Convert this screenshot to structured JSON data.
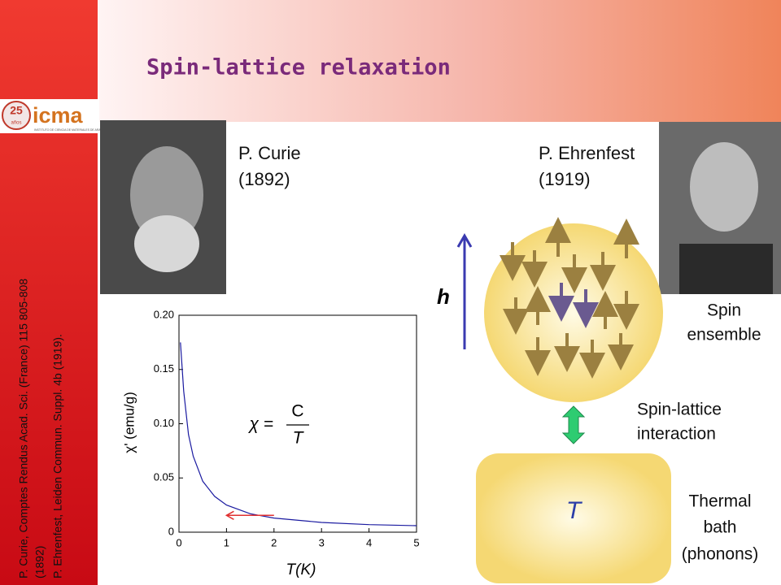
{
  "title": "Spin-lattice relaxation",
  "logo": {
    "years": "25",
    "years_word": "años",
    "name": "icma",
    "institute": "INSTITUTO DE CIENCIA DE MATERIALES DE ARAGÓN"
  },
  "references": [
    "P. Curie, Comptes Rendus Acad. Sci. (France) 115 805-808",
    "(1892)",
    "P. Ehrenfest, Leiden Commun. Suppl. 4b (1919)."
  ],
  "people": [
    {
      "name": "P. Curie",
      "year": "(1892)"
    },
    {
      "name": "P. Ehrenfest",
      "year": "(1919)"
    }
  ],
  "field_label": "h",
  "spin_label": [
    "Spin",
    "ensemble"
  ],
  "interaction_label": [
    "Spin-lattice",
    "interaction"
  ],
  "bath_symbol": "T",
  "bath_label": [
    "Thermal",
    "bath",
    "(phonons)"
  ],
  "chart_data": {
    "type": "line",
    "x_label": "T(K)",
    "y_label": "χ' (emu/g)",
    "formula": {
      "lhs": "χ =",
      "numerator": "C",
      "denominator": "T"
    },
    "x": [
      0.03,
      0.1,
      0.2,
      0.3,
      0.5,
      0.75,
      1,
      1.5,
      2,
      3,
      4,
      5
    ],
    "values": [
      0.175,
      0.13,
      0.09,
      0.07,
      0.047,
      0.033,
      0.025,
      0.017,
      0.013,
      0.009,
      0.007,
      0.006
    ],
    "color": "#1a1aa0",
    "xlim": [
      0,
      5
    ],
    "xticks": [
      0,
      1,
      2,
      3,
      4,
      5
    ],
    "ylim": [
      0,
      0.2
    ],
    "yticks": [
      0,
      0.05,
      {
        "value": 0.1,
        "label": "0.10"
      },
      0.15,
      {
        "value": 0.2,
        "label": "0.20"
      }
    ]
  }
}
